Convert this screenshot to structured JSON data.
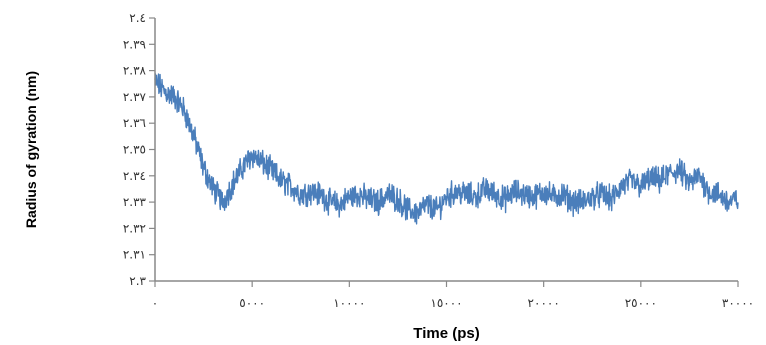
{
  "chart_data": {
    "type": "line",
    "title": "",
    "xlabel": "Time (ps)",
    "ylabel": "Radius of gyration (nm)",
    "xlim": [
      0,
      30000
    ],
    "ylim": [
      2.3,
      2.4
    ],
    "x_ticks": [
      0,
      5000,
      10000,
      15000,
      20000,
      25000,
      30000
    ],
    "x_tick_labels": [
      "٠",
      "٥٠٠٠",
      "١٠٠٠٠",
      "١٥٠٠٠",
      "٢٠٠٠٠",
      "٢٥٠٠٠",
      "٣٠٠٠٠"
    ],
    "y_ticks": [
      2.3,
      2.31,
      2.32,
      2.33,
      2.34,
      2.35,
      2.36,
      2.37,
      2.38,
      2.39,
      2.4
    ],
    "y_tick_labels": [
      "٢.٣",
      "٢.٣١",
      "٢.٣٢",
      "٢.٣٣",
      "٢.٣٤",
      "٢.٣٥",
      "٢.٣٦",
      "٢.٣٧",
      "٢.٣٨",
      "٢.٣٩",
      "٢.٤"
    ],
    "grid": false,
    "legend": "none",
    "series_color": "#4a7ebb",
    "series": [
      {
        "name": "",
        "x": [
          0,
          500,
          1000,
          1500,
          2000,
          2500,
          3000,
          3500,
          4000,
          4500,
          5000,
          5500,
          6000,
          6500,
          7000,
          7500,
          8000,
          8500,
          9000,
          9500,
          10000,
          10500,
          11000,
          11500,
          12000,
          12500,
          13000,
          13500,
          14000,
          14500,
          15000,
          15500,
          16000,
          16500,
          17000,
          17500,
          18000,
          18500,
          19000,
          19500,
          20000,
          20500,
          21000,
          21500,
          22000,
          22500,
          23000,
          23500,
          24000,
          24500,
          25000,
          25500,
          26000,
          26500,
          27000,
          27500,
          28000,
          28500,
          29000,
          29500,
          30000
        ],
        "y": [
          2.376,
          2.372,
          2.37,
          2.365,
          2.355,
          2.343,
          2.335,
          2.33,
          2.337,
          2.343,
          2.348,
          2.345,
          2.342,
          2.338,
          2.336,
          2.333,
          2.334,
          2.333,
          2.33,
          2.329,
          2.332,
          2.333,
          2.331,
          2.33,
          2.333,
          2.331,
          2.327,
          2.326,
          2.329,
          2.327,
          2.332,
          2.334,
          2.333,
          2.332,
          2.335,
          2.333,
          2.331,
          2.334,
          2.333,
          2.332,
          2.334,
          2.332,
          2.333,
          2.33,
          2.33,
          2.332,
          2.333,
          2.331,
          2.336,
          2.338,
          2.336,
          2.339,
          2.338,
          2.341,
          2.342,
          2.337,
          2.34,
          2.334,
          2.333,
          2.33,
          2.331
        ]
      }
    ]
  }
}
